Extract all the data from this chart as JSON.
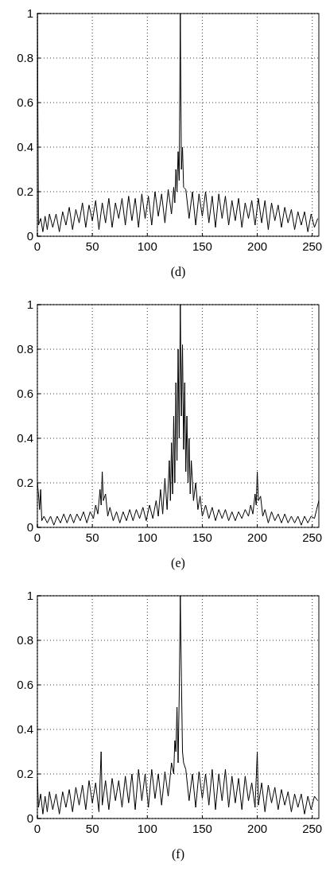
{
  "chart_data": [
    {
      "type": "line",
      "xlabel": "(d)",
      "xlim": [
        0,
        256
      ],
      "ylim": [
        0,
        1
      ],
      "xticks": [
        0,
        50,
        100,
        150,
        200,
        250
      ],
      "yticks": [
        0,
        0.2,
        0.4,
        0.6,
        0.8,
        1
      ],
      "grid": true,
      "marker": "none",
      "line_style": "solid",
      "series": [
        {
          "color": "#000000",
          "x": [
            0,
            1,
            3,
            5,
            7,
            9,
            11,
            14,
            17,
            20,
            23,
            26,
            29,
            32,
            35,
            38,
            41,
            44,
            47,
            50,
            53,
            56,
            59,
            62,
            65,
            68,
            71,
            74,
            77,
            80,
            83,
            86,
            89,
            92,
            95,
            98,
            101,
            104,
            107,
            110,
            113,
            116,
            119,
            122,
            124,
            125,
            126,
            127,
            128,
            129,
            130,
            131,
            132,
            133,
            135,
            138,
            141,
            144,
            147,
            150,
            153,
            156,
            159,
            162,
            165,
            168,
            171,
            174,
            177,
            180,
            183,
            186,
            189,
            192,
            195,
            198,
            201,
            204,
            207,
            210,
            213,
            216,
            219,
            222,
            225,
            228,
            231,
            234,
            237,
            240,
            243,
            246,
            249,
            252,
            255
          ],
          "values": [
            1.0,
            0.05,
            0.08,
            0.02,
            0.09,
            0.03,
            0.1,
            0.04,
            0.1,
            0.02,
            0.11,
            0.05,
            0.13,
            0.03,
            0.12,
            0.06,
            0.15,
            0.04,
            0.14,
            0.07,
            0.16,
            0.03,
            0.15,
            0.06,
            0.17,
            0.04,
            0.15,
            0.08,
            0.17,
            0.05,
            0.18,
            0.07,
            0.17,
            0.04,
            0.19,
            0.08,
            0.18,
            0.05,
            0.2,
            0.09,
            0.19,
            0.06,
            0.21,
            0.1,
            0.22,
            0.15,
            0.3,
            0.2,
            0.38,
            0.25,
            1.0,
            0.3,
            0.4,
            0.22,
            0.21,
            0.08,
            0.2,
            0.05,
            0.19,
            0.09,
            0.2,
            0.06,
            0.18,
            0.04,
            0.19,
            0.08,
            0.18,
            0.05,
            0.16,
            0.07,
            0.17,
            0.04,
            0.15,
            0.08,
            0.16,
            0.05,
            0.17,
            0.06,
            0.16,
            0.03,
            0.15,
            0.07,
            0.14,
            0.04,
            0.13,
            0.06,
            0.12,
            0.03,
            0.11,
            0.05,
            0.11,
            0.02,
            0.1,
            0.04,
            0.08
          ]
        }
      ]
    },
    {
      "type": "line",
      "xlabel": "(e)",
      "xlim": [
        0,
        256
      ],
      "ylim": [
        0,
        1
      ],
      "xticks": [
        0,
        50,
        100,
        150,
        200,
        250
      ],
      "yticks": [
        0,
        0.2,
        0.4,
        0.6,
        0.8,
        1
      ],
      "grid": true,
      "marker": "none",
      "line_style": "solid",
      "series": [
        {
          "color": "#000000",
          "x": [
            0,
            1,
            2,
            3,
            4,
            6,
            9,
            12,
            15,
            18,
            21,
            24,
            27,
            30,
            33,
            36,
            39,
            42,
            45,
            48,
            51,
            53,
            55,
            57,
            58,
            59,
            60,
            62,
            64,
            66,
            69,
            72,
            75,
            78,
            81,
            84,
            87,
            90,
            93,
            96,
            99,
            102,
            105,
            108,
            110,
            112,
            114,
            116,
            118,
            120,
            121,
            122,
            123,
            124,
            125,
            126,
            127,
            128,
            129,
            130,
            131,
            132,
            133,
            134,
            135,
            136,
            137,
            138,
            139,
            140,
            142,
            144,
            146,
            148,
            150,
            153,
            156,
            159,
            162,
            165,
            168,
            171,
            174,
            177,
            180,
            183,
            186,
            189,
            192,
            194,
            196,
            198,
            199,
            200,
            201,
            203,
            205,
            207,
            210,
            213,
            216,
            219,
            222,
            225,
            228,
            231,
            234,
            237,
            240,
            243,
            246,
            249,
            252,
            254,
            256
          ],
          "values": [
            0.2,
            0.15,
            0.08,
            0.17,
            0.03,
            0.05,
            0.02,
            0.05,
            0.01,
            0.05,
            0.02,
            0.06,
            0.02,
            0.06,
            0.02,
            0.06,
            0.03,
            0.07,
            0.02,
            0.07,
            0.04,
            0.1,
            0.06,
            0.17,
            0.1,
            0.25,
            0.12,
            0.15,
            0.05,
            0.09,
            0.03,
            0.07,
            0.02,
            0.07,
            0.03,
            0.08,
            0.03,
            0.08,
            0.04,
            0.09,
            0.03,
            0.1,
            0.04,
            0.12,
            0.05,
            0.17,
            0.06,
            0.22,
            0.08,
            0.3,
            0.12,
            0.38,
            0.15,
            0.5,
            0.2,
            0.65,
            0.3,
            0.8,
            0.4,
            1.0,
            0.5,
            0.82,
            0.35,
            0.65,
            0.25,
            0.5,
            0.2,
            0.4,
            0.15,
            0.3,
            0.12,
            0.2,
            0.08,
            0.14,
            0.05,
            0.1,
            0.04,
            0.09,
            0.03,
            0.08,
            0.04,
            0.08,
            0.03,
            0.07,
            0.03,
            0.07,
            0.04,
            0.08,
            0.05,
            0.1,
            0.06,
            0.15,
            0.1,
            0.25,
            0.12,
            0.14,
            0.05,
            0.08,
            0.02,
            0.07,
            0.03,
            0.06,
            0.02,
            0.06,
            0.02,
            0.05,
            0.02,
            0.05,
            0.01,
            0.05,
            0.02,
            0.05,
            0.04,
            0.08,
            0.12
          ]
        }
      ]
    },
    {
      "type": "line",
      "xlabel": "(f)",
      "xlim": [
        0,
        256
      ],
      "ylim": [
        0,
        1
      ],
      "xticks": [
        0,
        50,
        100,
        150,
        200,
        250
      ],
      "yticks": [
        0,
        0.2,
        0.4,
        0.6,
        0.8,
        1
      ],
      "grid": true,
      "marker": "none",
      "line_style": "solid",
      "series": [
        {
          "color": "#000000",
          "x": [
            0,
            1,
            3,
            5,
            7,
            9,
            11,
            14,
            17,
            20,
            23,
            26,
            29,
            32,
            35,
            38,
            41,
            44,
            47,
            50,
            53,
            56,
            58,
            59,
            62,
            65,
            68,
            71,
            74,
            77,
            80,
            83,
            86,
            89,
            92,
            95,
            98,
            101,
            104,
            107,
            110,
            113,
            116,
            119,
            122,
            124,
            125,
            126,
            127,
            128,
            129,
            130,
            131,
            132,
            133,
            135,
            138,
            141,
            144,
            147,
            150,
            153,
            156,
            159,
            162,
            165,
            168,
            171,
            174,
            177,
            180,
            183,
            186,
            189,
            192,
            195,
            198,
            200,
            201,
            204,
            207,
            210,
            213,
            216,
            219,
            222,
            225,
            228,
            231,
            234,
            237,
            240,
            243,
            246,
            249,
            252,
            255
          ],
          "values": [
            0.18,
            0.05,
            0.11,
            0.02,
            0.1,
            0.03,
            0.12,
            0.04,
            0.11,
            0.02,
            0.12,
            0.05,
            0.13,
            0.03,
            0.14,
            0.06,
            0.15,
            0.04,
            0.17,
            0.07,
            0.16,
            0.03,
            0.3,
            0.06,
            0.17,
            0.04,
            0.18,
            0.08,
            0.17,
            0.05,
            0.19,
            0.07,
            0.2,
            0.04,
            0.22,
            0.08,
            0.2,
            0.05,
            0.22,
            0.09,
            0.2,
            0.06,
            0.21,
            0.1,
            0.25,
            0.2,
            0.35,
            0.3,
            0.5,
            0.25,
            0.55,
            1.0,
            0.63,
            0.3,
            0.25,
            0.22,
            0.08,
            0.2,
            0.05,
            0.21,
            0.09,
            0.2,
            0.06,
            0.22,
            0.04,
            0.2,
            0.08,
            0.22,
            0.05,
            0.19,
            0.07,
            0.18,
            0.04,
            0.19,
            0.08,
            0.16,
            0.05,
            0.3,
            0.06,
            0.16,
            0.03,
            0.15,
            0.07,
            0.14,
            0.04,
            0.13,
            0.06,
            0.12,
            0.03,
            0.11,
            0.05,
            0.11,
            0.02,
            0.1,
            0.04,
            0.1,
            0.08
          ]
        }
      ]
    }
  ]
}
